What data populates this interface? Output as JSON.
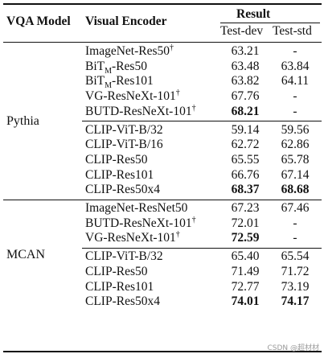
{
  "header": {
    "col_model": "VQA Model",
    "col_encoder": "Visual Encoder",
    "col_result": "Result",
    "col_testdev": "Test-dev",
    "col_teststd": "Test-std"
  },
  "groups": [
    {
      "model": "Pythia",
      "blocks": [
        {
          "rows": [
            {
              "enc": "ImageNet-Res50",
              "dagger": "†",
              "dev": "63.21",
              "std": "-",
              "bold_dev": false,
              "bold_std": false
            },
            {
              "enc_pre": "BiT",
              "enc_sub": "M",
              "enc_post": "-Res50",
              "dev": "63.48",
              "std": "63.84",
              "bold_dev": false,
              "bold_std": false
            },
            {
              "enc_pre": "BiT",
              "enc_sub": "M",
              "enc_post": "-Res101",
              "dev": "63.82",
              "std": "64.11",
              "bold_dev": false,
              "bold_std": false
            },
            {
              "enc": "VG-ResNeXt-101",
              "dagger": "†",
              "dev": "67.76",
              "std": "-",
              "bold_dev": false,
              "bold_std": false
            },
            {
              "enc": "BUTD-ResNeXt-101",
              "dagger": "†",
              "dev": "68.21",
              "std": "-",
              "bold_dev": true,
              "bold_std": false
            }
          ]
        },
        {
          "rows": [
            {
              "enc": "CLIP-ViT-B/32",
              "dev": "59.14",
              "std": "59.56",
              "bold_dev": false,
              "bold_std": false
            },
            {
              "enc": "CLIP-ViT-B/16",
              "dev": "62.72",
              "std": "62.86",
              "bold_dev": false,
              "bold_std": false
            },
            {
              "enc": "CLIP-Res50",
              "dev": "65.55",
              "std": "65.78",
              "bold_dev": false,
              "bold_std": false
            },
            {
              "enc": "CLIP-Res101",
              "dev": "66.76",
              "std": "67.14",
              "bold_dev": false,
              "bold_std": false
            },
            {
              "enc": "CLIP-Res50x4",
              "dev": "68.37",
              "std": "68.68",
              "bold_dev": true,
              "bold_std": true
            }
          ]
        }
      ]
    },
    {
      "model": "MCAN",
      "blocks": [
        {
          "rows": [
            {
              "enc": "ImageNet-ResNet50",
              "dev": "67.23",
              "std": "67.46",
              "bold_dev": false,
              "bold_std": false
            },
            {
              "enc": "BUTD-ResNeXt-101",
              "dagger": "†",
              "dev": "72.01",
              "std": "-",
              "bold_dev": false,
              "bold_std": false
            },
            {
              "enc": "VG-ResNeXt-101",
              "dagger": "†",
              "dev": "72.59",
              "std": "-",
              "bold_dev": true,
              "bold_std": false
            }
          ]
        },
        {
          "rows": [
            {
              "enc": "CLIP-ViT-B/32",
              "dev": "65.40",
              "std": "65.54",
              "bold_dev": false,
              "bold_std": false
            },
            {
              "enc": "CLIP-Res50",
              "dev": "71.49",
              "std": "71.72",
              "bold_dev": false,
              "bold_std": false
            },
            {
              "enc": "CLIP-Res101",
              "dev": "72.77",
              "std": "73.19",
              "bold_dev": false,
              "bold_std": false
            },
            {
              "enc": "CLIP-Res50x4",
              "dev": "74.01",
              "std": "74.17",
              "bold_dev": true,
              "bold_std": true
            }
          ]
        }
      ]
    }
  ],
  "watermark": "CSDN @超材材"
}
